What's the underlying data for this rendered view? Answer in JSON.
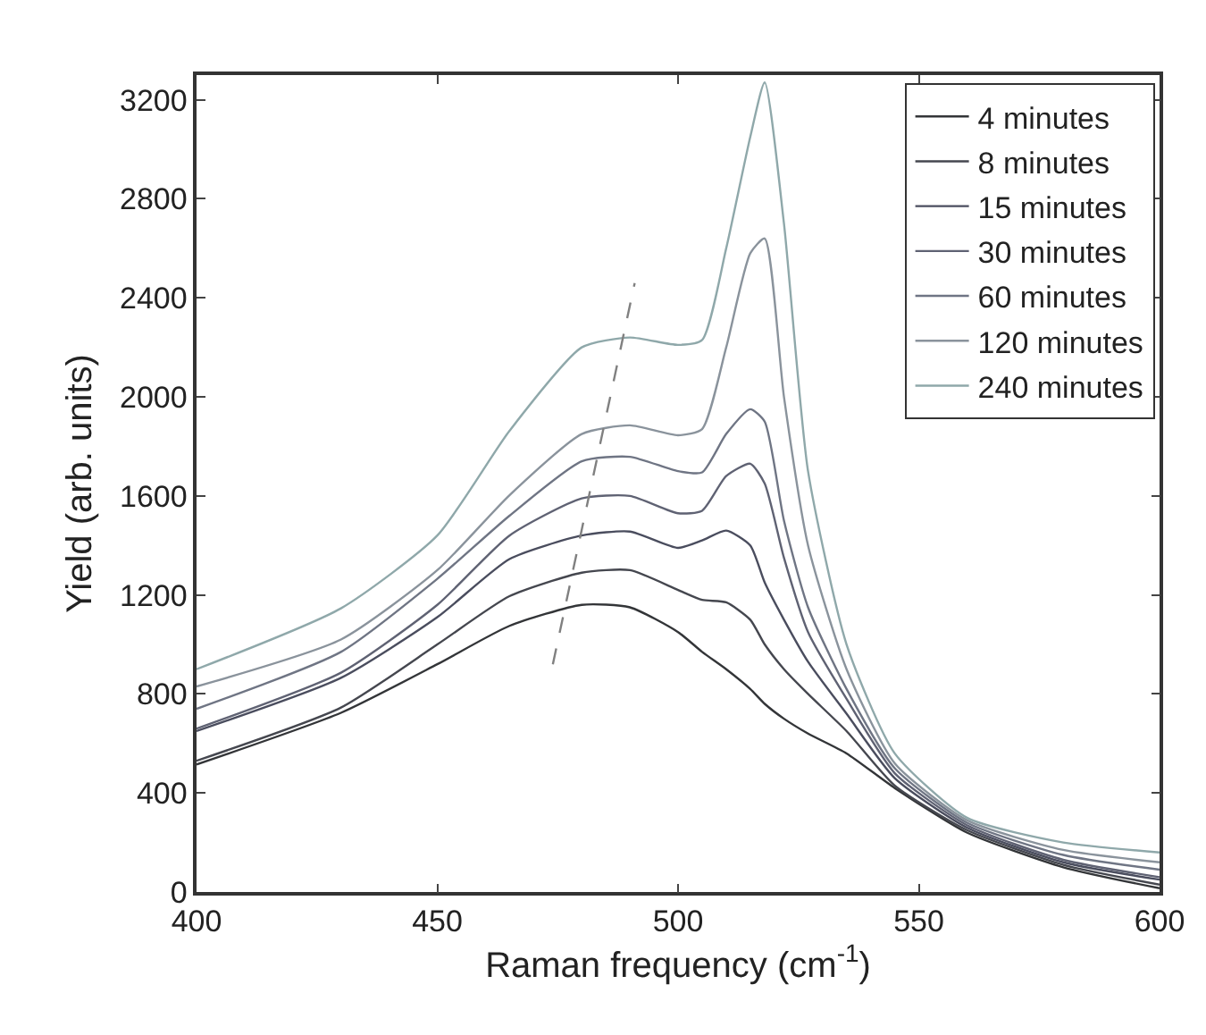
{
  "chart_data": {
    "type": "line",
    "xlabel": "Raman frequency (cm$^{-1}$)",
    "ylabel": "Yield (arb. units)",
    "x": [
      400,
      430,
      450,
      465,
      480,
      490,
      500,
      505,
      510,
      515,
      518,
      522,
      527,
      535,
      545,
      560,
      580,
      600
    ],
    "xlim": [
      400,
      600
    ],
    "xticks": [
      400,
      450,
      500,
      550,
      600
    ],
    "ylim": [
      0,
      3300
    ],
    "yticks": [
      0,
      400,
      800,
      1200,
      1600,
      2000,
      2400,
      2800,
      3200
    ],
    "grid": false,
    "legend": "top right",
    "marker": "none",
    "line_style": "solid",
    "series": [
      {
        "name": "4 minutes",
        "color": "#333538",
        "values": [
          515,
          724,
          920,
          1075,
          1160,
          1150,
          1050,
          970,
          900,
          820,
          760,
          700,
          640,
          560,
          420,
          240,
          100,
          15
        ]
      },
      {
        "name": "8 minutes",
        "color": "#45474f",
        "values": [
          530,
          745,
          1000,
          1195,
          1290,
          1300,
          1220,
          1180,
          1170,
          1100,
          1000,
          900,
          800,
          650,
          430,
          250,
          110,
          30
        ]
      },
      {
        "name": "15 minutes",
        "color": "#4a4d5e",
        "values": [
          650,
          865,
          1110,
          1345,
          1440,
          1456,
          1390,
          1420,
          1460,
          1400,
          1250,
          1100,
          930,
          720,
          460,
          260,
          120,
          50
        ]
      },
      {
        "name": "30 minutes",
        "color": "#5f6273",
        "values": [
          660,
          886,
          1160,
          1440,
          1590,
          1600,
          1530,
          1540,
          1680,
          1730,
          1650,
          1350,
          1050,
          780,
          480,
          270,
          130,
          60
        ]
      },
      {
        "name": "60 minutes",
        "color": "#6f7584",
        "values": [
          740,
          970,
          1265,
          1520,
          1740,
          1758,
          1700,
          1695,
          1850,
          1950,
          1900,
          1500,
          1150,
          820,
          500,
          280,
          150,
          90
        ]
      },
      {
        "name": "120 minutes",
        "color": "#8a939c",
        "values": [
          830,
          1020,
          1300,
          1603,
          1850,
          1885,
          1845,
          1870,
          2200,
          2580,
          2640,
          2000,
          1400,
          900,
          520,
          290,
          170,
          120
        ]
      },
      {
        "name": "240 minutes",
        "color": "#8fa8aa",
        "values": [
          900,
          1146,
          1440,
          1863,
          2200,
          2240,
          2210,
          2230,
          2600,
          3050,
          3270,
          2700,
          1700,
          1000,
          560,
          300,
          200,
          160
        ]
      },
      {
        "color": "#808080",
        "line_style": "dashed",
        "x": [
          474,
          491
        ],
        "values": [
          920,
          2460
        ]
      }
    ]
  }
}
